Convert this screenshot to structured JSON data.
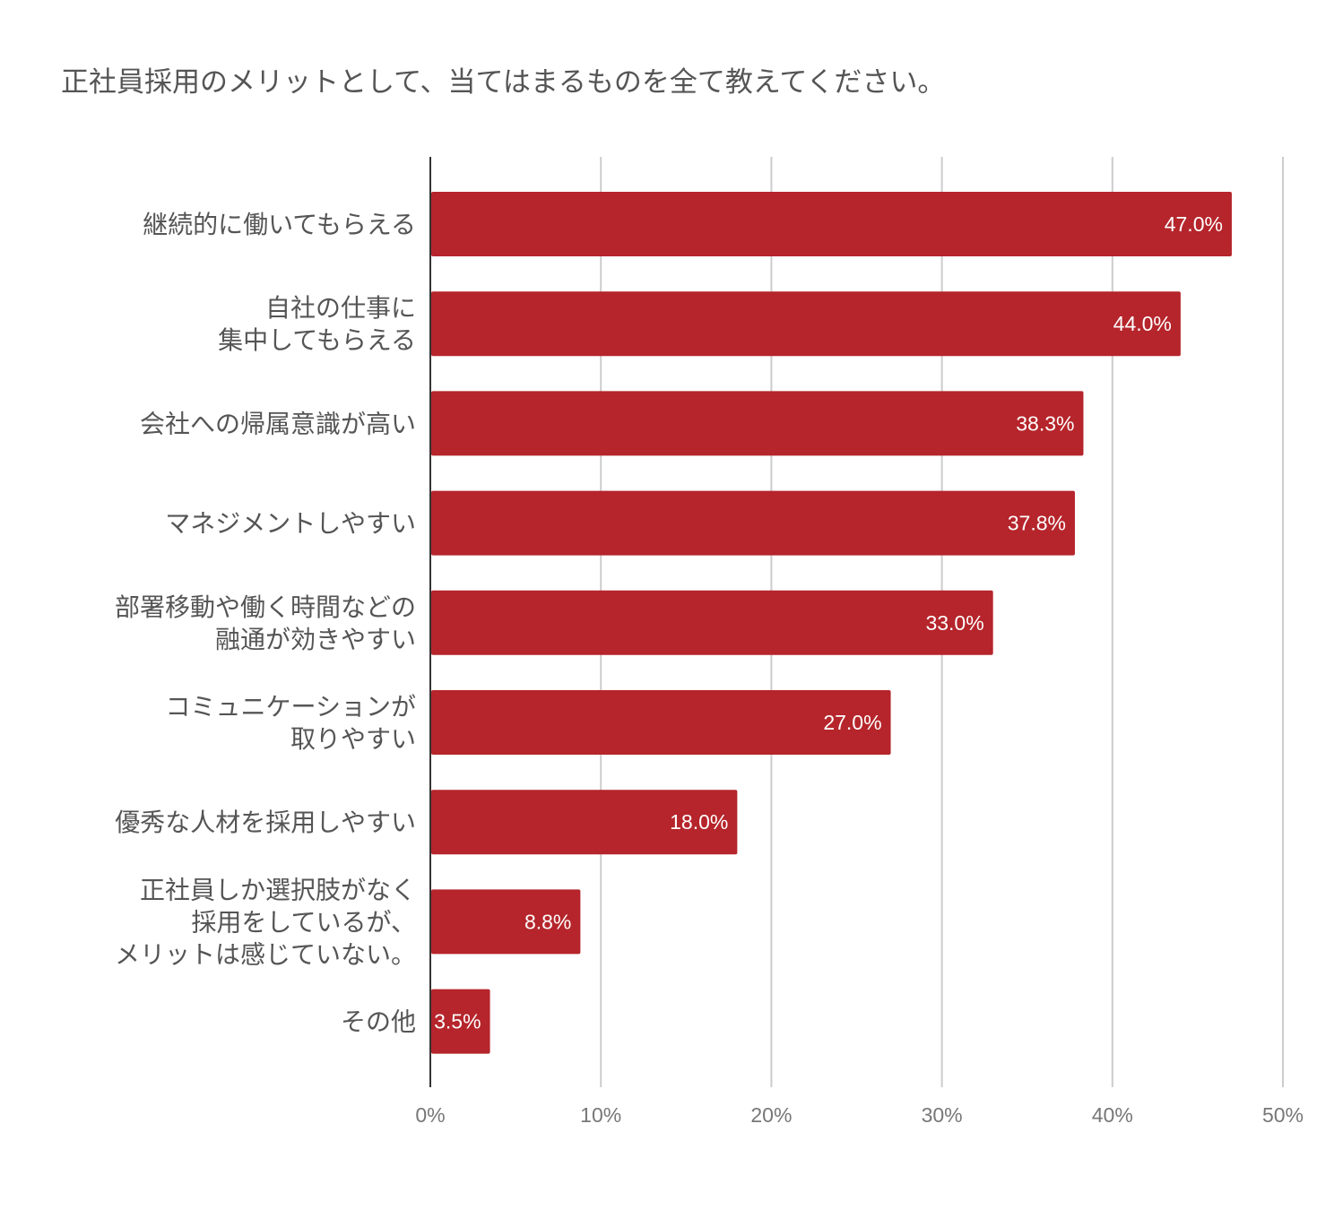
{
  "chart_data": {
    "type": "bar",
    "orientation": "horizontal",
    "title": "正社員採用のメリットとして、当てはまるものを全て教えてください。",
    "categories": [
      [
        "継続的に働いてもらえる"
      ],
      [
        "自社の仕事に",
        "集中してもらえる"
      ],
      [
        "会社への帰属意識が高い"
      ],
      [
        "マネジメントしやすい"
      ],
      [
        "部署移動や働く時間などの",
        "融通が効きやすい"
      ],
      [
        "コミュニケーションが",
        "取りやすい"
      ],
      [
        "優秀な人材を採用しやすい"
      ],
      [
        "正社員しか選択肢がなく",
        "採用をしているが、",
        "メリットは感じていない。"
      ],
      [
        "その他"
      ]
    ],
    "values": [
      47.0,
      44.0,
      38.3,
      37.8,
      33.0,
      27.0,
      18.0,
      8.8,
      3.5
    ],
    "value_labels": [
      "47.0%",
      "44.0%",
      "38.3%",
      "37.8%",
      "33.0%",
      "27.0%",
      "18.0%",
      "8.8%",
      "3.5%"
    ],
    "xlim": [
      0,
      50
    ],
    "x_ticks": [
      0,
      10,
      20,
      30,
      40,
      50
    ],
    "x_tick_labels": [
      "0%",
      "10%",
      "20%",
      "30%",
      "40%",
      "50%"
    ],
    "xlabel": "",
    "ylabel": "",
    "grid": true,
    "legend": "none",
    "colors": {
      "bar": "#b5252b",
      "grid": "#cccccc",
      "axis": "#333333"
    }
  }
}
